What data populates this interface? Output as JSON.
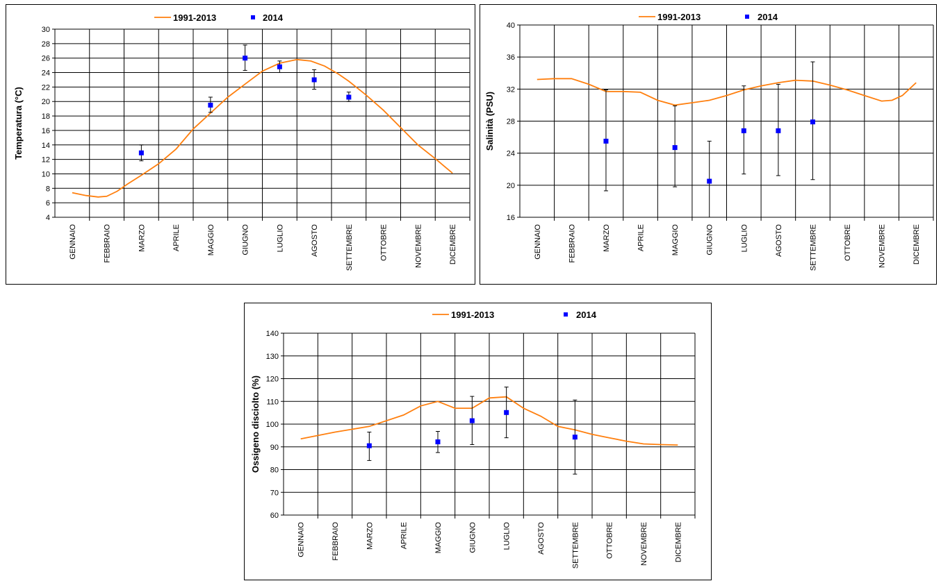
{
  "legend": {
    "line_label": "1991-2013",
    "point_label": "2014"
  },
  "colors": {
    "line": "#ff7f0e",
    "points": "#0000ff",
    "grid": "#000000",
    "errorbar": "#000000"
  },
  "chart_data": [
    {
      "type": "line",
      "ylabel": "Temperatura (°C)",
      "ylim": [
        4,
        30
      ],
      "yticks": [
        4,
        6,
        8,
        10,
        12,
        14,
        16,
        18,
        20,
        22,
        24,
        26,
        28,
        30
      ],
      "categories": [
        "GENNAIO",
        "FEBBRAIO",
        "MARZO",
        "APRILE",
        "MAGGIO",
        "GIUGNO",
        "LUGLIO",
        "AGOSTO",
        "SETTEMBRE",
        "OTTOBRE",
        "NOVEMBRE",
        "DICEMBRE"
      ],
      "legend_position": "top",
      "grid": true,
      "series": [
        {
          "name": "1991-2013",
          "kind": "line",
          "points": [
            [
              0,
              7.4
            ],
            [
              0.4,
              7.0
            ],
            [
              0.75,
              6.8
            ],
            [
              1,
              6.9
            ],
            [
              1.3,
              7.6
            ],
            [
              1.6,
              8.6
            ],
            [
              2,
              9.8
            ],
            [
              2.5,
              11.4
            ],
            [
              3,
              13.4
            ],
            [
              3.5,
              16.2
            ],
            [
              4,
              18.4
            ],
            [
              4.5,
              20.6
            ],
            [
              5,
              22.4
            ],
            [
              5.5,
              24.2
            ],
            [
              6,
              25.3
            ],
            [
              6.5,
              25.8
            ],
            [
              6.9,
              25.6
            ],
            [
              7.3,
              24.9
            ],
            [
              7.7,
              23.8
            ],
            [
              8,
              22.8
            ],
            [
              8.5,
              20.9
            ],
            [
              9,
              18.8
            ],
            [
              9.5,
              16.4
            ],
            [
              10,
              14.0
            ],
            [
              10.5,
              12.1
            ],
            [
              11,
              10.1
            ]
          ]
        },
        {
          "name": "2014",
          "kind": "scatter",
          "points": [
            {
              "x": 2,
              "y": 12.9,
              "low": 11.8,
              "high": 14.0
            },
            {
              "x": 4,
              "y": 19.5,
              "low": 18.5,
              "high": 20.6
            },
            {
              "x": 5,
              "y": 26.0,
              "low": 24.3,
              "high": 27.8
            },
            {
              "x": 6,
              "y": 24.8,
              "low": 24.0,
              "high": 25.6
            },
            {
              "x": 7,
              "y": 23.0,
              "low": 21.7,
              "high": 24.4
            },
            {
              "x": 8,
              "y": 20.6,
              "low": 20.0,
              "high": 21.3
            }
          ]
        }
      ]
    },
    {
      "type": "line",
      "ylabel": "Salinità (PSU)",
      "ylim": [
        16,
        40
      ],
      "yticks": [
        16,
        20,
        24,
        28,
        32,
        36,
        40
      ],
      "categories": [
        "GENNAIO",
        "FEBBRAIO",
        "MARZO",
        "APRILE",
        "MAGGIO",
        "GIUGNO",
        "LUGLIO",
        "AGOSTO",
        "SETTEMBRE",
        "OTTOBRE",
        "NOVEMBRE",
        "DICEMBRE"
      ],
      "legend_position": "top",
      "grid": true,
      "series": [
        {
          "name": "1991-2013",
          "kind": "line",
          "points": [
            [
              0,
              33.2
            ],
            [
              0.5,
              33.3
            ],
            [
              1,
              33.3
            ],
            [
              1.5,
              32.6
            ],
            [
              2,
              31.7
            ],
            [
              2.5,
              31.7
            ],
            [
              3,
              31.6
            ],
            [
              3.5,
              30.6
            ],
            [
              4,
              30.0
            ],
            [
              4.5,
              30.3
            ],
            [
              5,
              30.6
            ],
            [
              5.5,
              31.2
            ],
            [
              6,
              31.9
            ],
            [
              6.5,
              32.4
            ],
            [
              7,
              32.8
            ],
            [
              7.5,
              33.1
            ],
            [
              8,
              33.0
            ],
            [
              8.5,
              32.5
            ],
            [
              9,
              31.9
            ],
            [
              9.5,
              31.2
            ],
            [
              10,
              30.5
            ],
            [
              10.3,
              30.6
            ],
            [
              10.6,
              31.2
            ],
            [
              11,
              32.8
            ]
          ]
        },
        {
          "name": "2014",
          "kind": "scatter",
          "points": [
            {
              "x": 2,
              "y": 25.5,
              "low": 19.3,
              "high": 31.9
            },
            {
              "x": 4,
              "y": 24.7,
              "low": 19.8,
              "high": 29.9
            },
            {
              "x": 5,
              "y": 20.5,
              "low": 16.0,
              "high": 25.5
            },
            {
              "x": 6,
              "y": 26.8,
              "low": 21.4,
              "high": 32.4
            },
            {
              "x": 7,
              "y": 26.8,
              "low": 21.2,
              "high": 32.6
            },
            {
              "x": 8,
              "y": 27.9,
              "low": 20.7,
              "high": 35.4
            }
          ]
        }
      ]
    },
    {
      "type": "line",
      "ylabel": "Ossigeno disciolto (%)",
      "ylim": [
        60,
        140
      ],
      "yticks": [
        60,
        70,
        80,
        90,
        100,
        110,
        120,
        130,
        140
      ],
      "categories": [
        "GENNAIO",
        "FEBBRAIO",
        "MARZO",
        "APRILE",
        "MAGGIO",
        "GIUGNO",
        "LUGLIO",
        "AGOSTO",
        "SETTEMBRE",
        "OTTOBRE",
        "NOVEMBRE",
        "DICEMBRE"
      ],
      "legend_position": "top",
      "grid": true,
      "series": [
        {
          "name": "1991-2013",
          "kind": "line",
          "points": [
            [
              0,
              93.5
            ],
            [
              1,
              96.5
            ],
            [
              2,
              99.0
            ],
            [
              3,
              104.0
            ],
            [
              3.5,
              108.0
            ],
            [
              4,
              110.0
            ],
            [
              4.5,
              107.0
            ],
            [
              5,
              107.0
            ],
            [
              5.5,
              111.5
            ],
            [
              6,
              112.0
            ],
            [
              6.5,
              107.0
            ],
            [
              7,
              103.5
            ],
            [
              7.5,
              99.0
            ],
            [
              8,
              97.5
            ],
            [
              8.5,
              95.5
            ],
            [
              9,
              94.0
            ],
            [
              9.5,
              92.5
            ],
            [
              10,
              91.3
            ],
            [
              10.5,
              91.0
            ],
            [
              11,
              90.8
            ]
          ]
        },
        {
          "name": "2014",
          "kind": "scatter",
          "points": [
            {
              "x": 2,
              "y": 90.5,
              "low": 84.0,
              "high": 96.5
            },
            {
              "x": 4,
              "y": 92.2,
              "low": 87.5,
              "high": 96.8
            },
            {
              "x": 5,
              "y": 101.5,
              "low": 91.0,
              "high": 112.2
            },
            {
              "x": 6,
              "y": 105.1,
              "low": 94.0,
              "high": 116.3
            },
            {
              "x": 8,
              "y": 94.3,
              "low": 78.0,
              "high": 110.6
            }
          ]
        }
      ]
    }
  ]
}
